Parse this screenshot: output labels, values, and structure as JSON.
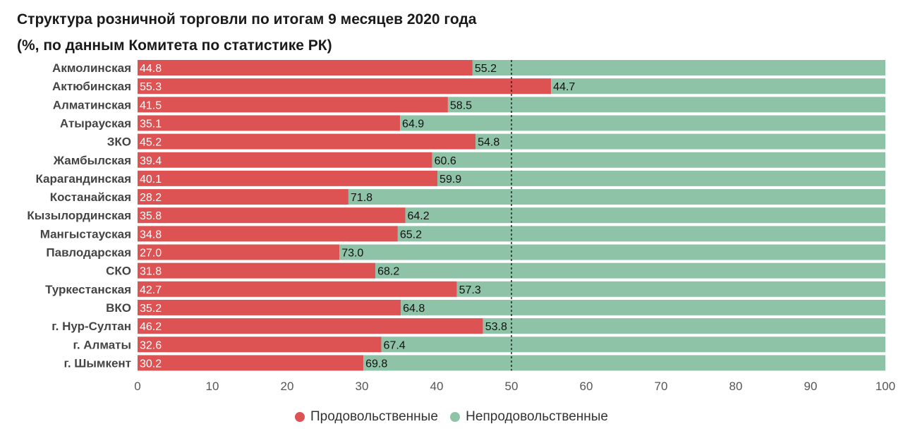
{
  "header": {
    "title_line1": "Структура розничной торговли по итогам 9 месяцев 2020 года",
    "title_line2": "(%, по данным Комитета по статистике РК)"
  },
  "colors": {
    "food": "#dd5353",
    "nonfood": "#8fc3a8",
    "refline": "#222222"
  },
  "chart_data": {
    "type": "bar",
    "orientation": "horizontal",
    "stacked": true,
    "categories": [
      "Акмолинская",
      "Актюбинская",
      "Алматинская",
      "Атырауская",
      "ЗКО",
      "Жамбылская",
      "Карагандинская",
      "Костанайская",
      "Кызылординская",
      "Мангыстауская",
      "Павлодарская",
      "СКО",
      "Туркестанская",
      "ВКО",
      "г. Нур-Султан",
      "г. Алматы",
      "г. Шымкент"
    ],
    "series": [
      {
        "name": "Продовольственные",
        "values": [
          44.8,
          55.3,
          41.5,
          35.1,
          45.2,
          39.4,
          40.1,
          28.2,
          35.8,
          34.8,
          27.0,
          31.8,
          42.7,
          35.2,
          46.2,
          32.6,
          30.2
        ]
      },
      {
        "name": "Непродовольственные",
        "values": [
          55.2,
          44.7,
          58.5,
          64.9,
          54.8,
          60.6,
          59.9,
          71.8,
          64.2,
          65.2,
          73.0,
          68.2,
          57.3,
          64.8,
          53.8,
          67.4,
          69.8
        ]
      }
    ],
    "xlim": [
      0,
      100
    ],
    "xticks": [
      0,
      10,
      20,
      30,
      40,
      50,
      60,
      70,
      80,
      90,
      100
    ],
    "reference_line": 50,
    "legend_position": "bottom",
    "grid": false
  }
}
